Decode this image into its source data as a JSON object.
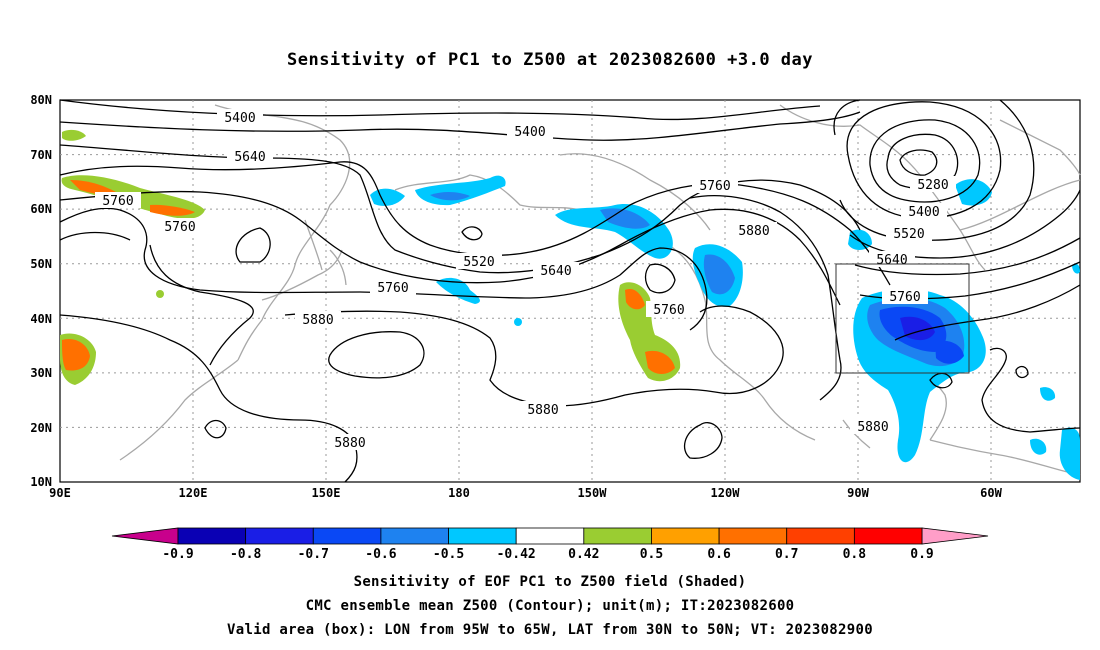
{
  "title": "Sensitivity of PC1 to Z500 at 2023082600 +3.0 day",
  "lat_labels": [
    "80N",
    "70N",
    "60N",
    "50N",
    "40N",
    "30N",
    "20N",
    "10N"
  ],
  "lon_labels": [
    "90E",
    "120E",
    "150E",
    "180",
    "150W",
    "120W",
    "90W",
    "60W"
  ],
  "contour_labels": [
    {
      "text": "5400"
    },
    {
      "text": "5400"
    },
    {
      "text": "5640"
    },
    {
      "text": "5760"
    },
    {
      "text": "5760"
    },
    {
      "text": "5760"
    },
    {
      "text": "5520"
    },
    {
      "text": "5640"
    },
    {
      "text": "5760"
    },
    {
      "text": "5880"
    },
    {
      "text": "5760"
    },
    {
      "text": "5880"
    },
    {
      "text": "5880"
    },
    {
      "text": "5880"
    },
    {
      "text": "5280"
    },
    {
      "text": "5400"
    },
    {
      "text": "5520"
    },
    {
      "text": "5640"
    },
    {
      "text": "5760"
    },
    {
      "text": "5880"
    }
  ],
  "colorbar": {
    "labels": [
      "-0.9",
      "-0.8",
      "-0.7",
      "-0.6",
      "-0.5",
      "-0.42",
      "0.42",
      "0.5",
      "0.6",
      "0.7",
      "0.8",
      "0.9"
    ],
    "colors": [
      "#0a00b4",
      "#1a1ee6",
      "#0a48f5",
      "#1e82f0",
      "#00c8ff",
      "#ffffff",
      "#9acd32",
      "#ffa000",
      "#ff7000",
      "#ff4000",
      "#ff0000"
    ],
    "left_end_color": "#c8008c",
    "right_end_color": "#ff9ec8"
  },
  "captions": [
    "Sensitivity of EOF PC1 to Z500 field (Shaded)",
    "CMC ensemble mean Z500 (Contour); unit(m); IT:2023082600",
    "Valid area (box): LON from 95W to 65W, LAT from 30N to 50N; VT: 2023082900"
  ]
}
